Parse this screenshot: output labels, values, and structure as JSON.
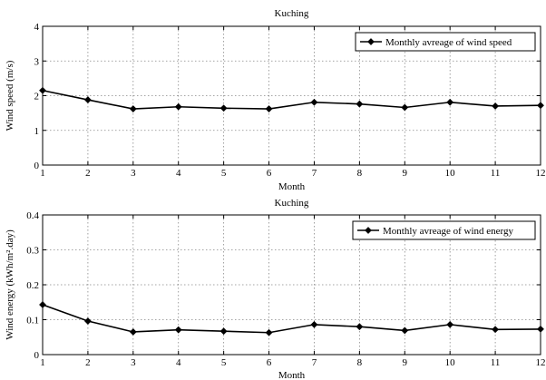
{
  "chart_data": [
    {
      "type": "line",
      "title": "Kuching",
      "xlabel": "Month",
      "ylabel": "Wind speed (m/s)",
      "x": [
        1,
        2,
        3,
        4,
        5,
        6,
        7,
        8,
        9,
        10,
        11,
        12
      ],
      "xlim": [
        1,
        12
      ],
      "ylim": [
        0,
        4
      ],
      "xticks": [
        "1",
        "2",
        "3",
        "4",
        "5",
        "6",
        "7",
        "8",
        "9",
        "10",
        "11",
        "12"
      ],
      "yticks": [
        "0",
        "1",
        "2",
        "3",
        "4"
      ],
      "grid": true,
      "legend_position": "top-right",
      "series": [
        {
          "name": "Monthly avreage of wind speed",
          "values": [
            2.15,
            1.88,
            1.62,
            1.68,
            1.64,
            1.62,
            1.81,
            1.76,
            1.66,
            1.81,
            1.7,
            1.72
          ],
          "color": "#000000",
          "marker": "diamond"
        }
      ]
    },
    {
      "type": "line",
      "title": "Kuching",
      "xlabel": "Month",
      "ylabel": "Wind energy (kWh/m².day)",
      "x": [
        1,
        2,
        3,
        4,
        5,
        6,
        7,
        8,
        9,
        10,
        11,
        12
      ],
      "xlim": [
        1,
        12
      ],
      "ylim": [
        0,
        0.4
      ],
      "xticks": [
        "1",
        "2",
        "3",
        "4",
        "5",
        "6",
        "7",
        "8",
        "9",
        "10",
        "11",
        "12"
      ],
      "yticks": [
        "0",
        "0.1",
        "0.2",
        "0.3",
        "0.4"
      ],
      "grid": true,
      "legend_position": "top-right",
      "series": [
        {
          "name": "Monthly avreage of wind energy",
          "values": [
            0.143,
            0.096,
            0.065,
            0.071,
            0.067,
            0.063,
            0.086,
            0.08,
            0.069,
            0.086,
            0.072,
            0.073
          ],
          "color": "#000000",
          "marker": "diamond"
        }
      ]
    }
  ]
}
